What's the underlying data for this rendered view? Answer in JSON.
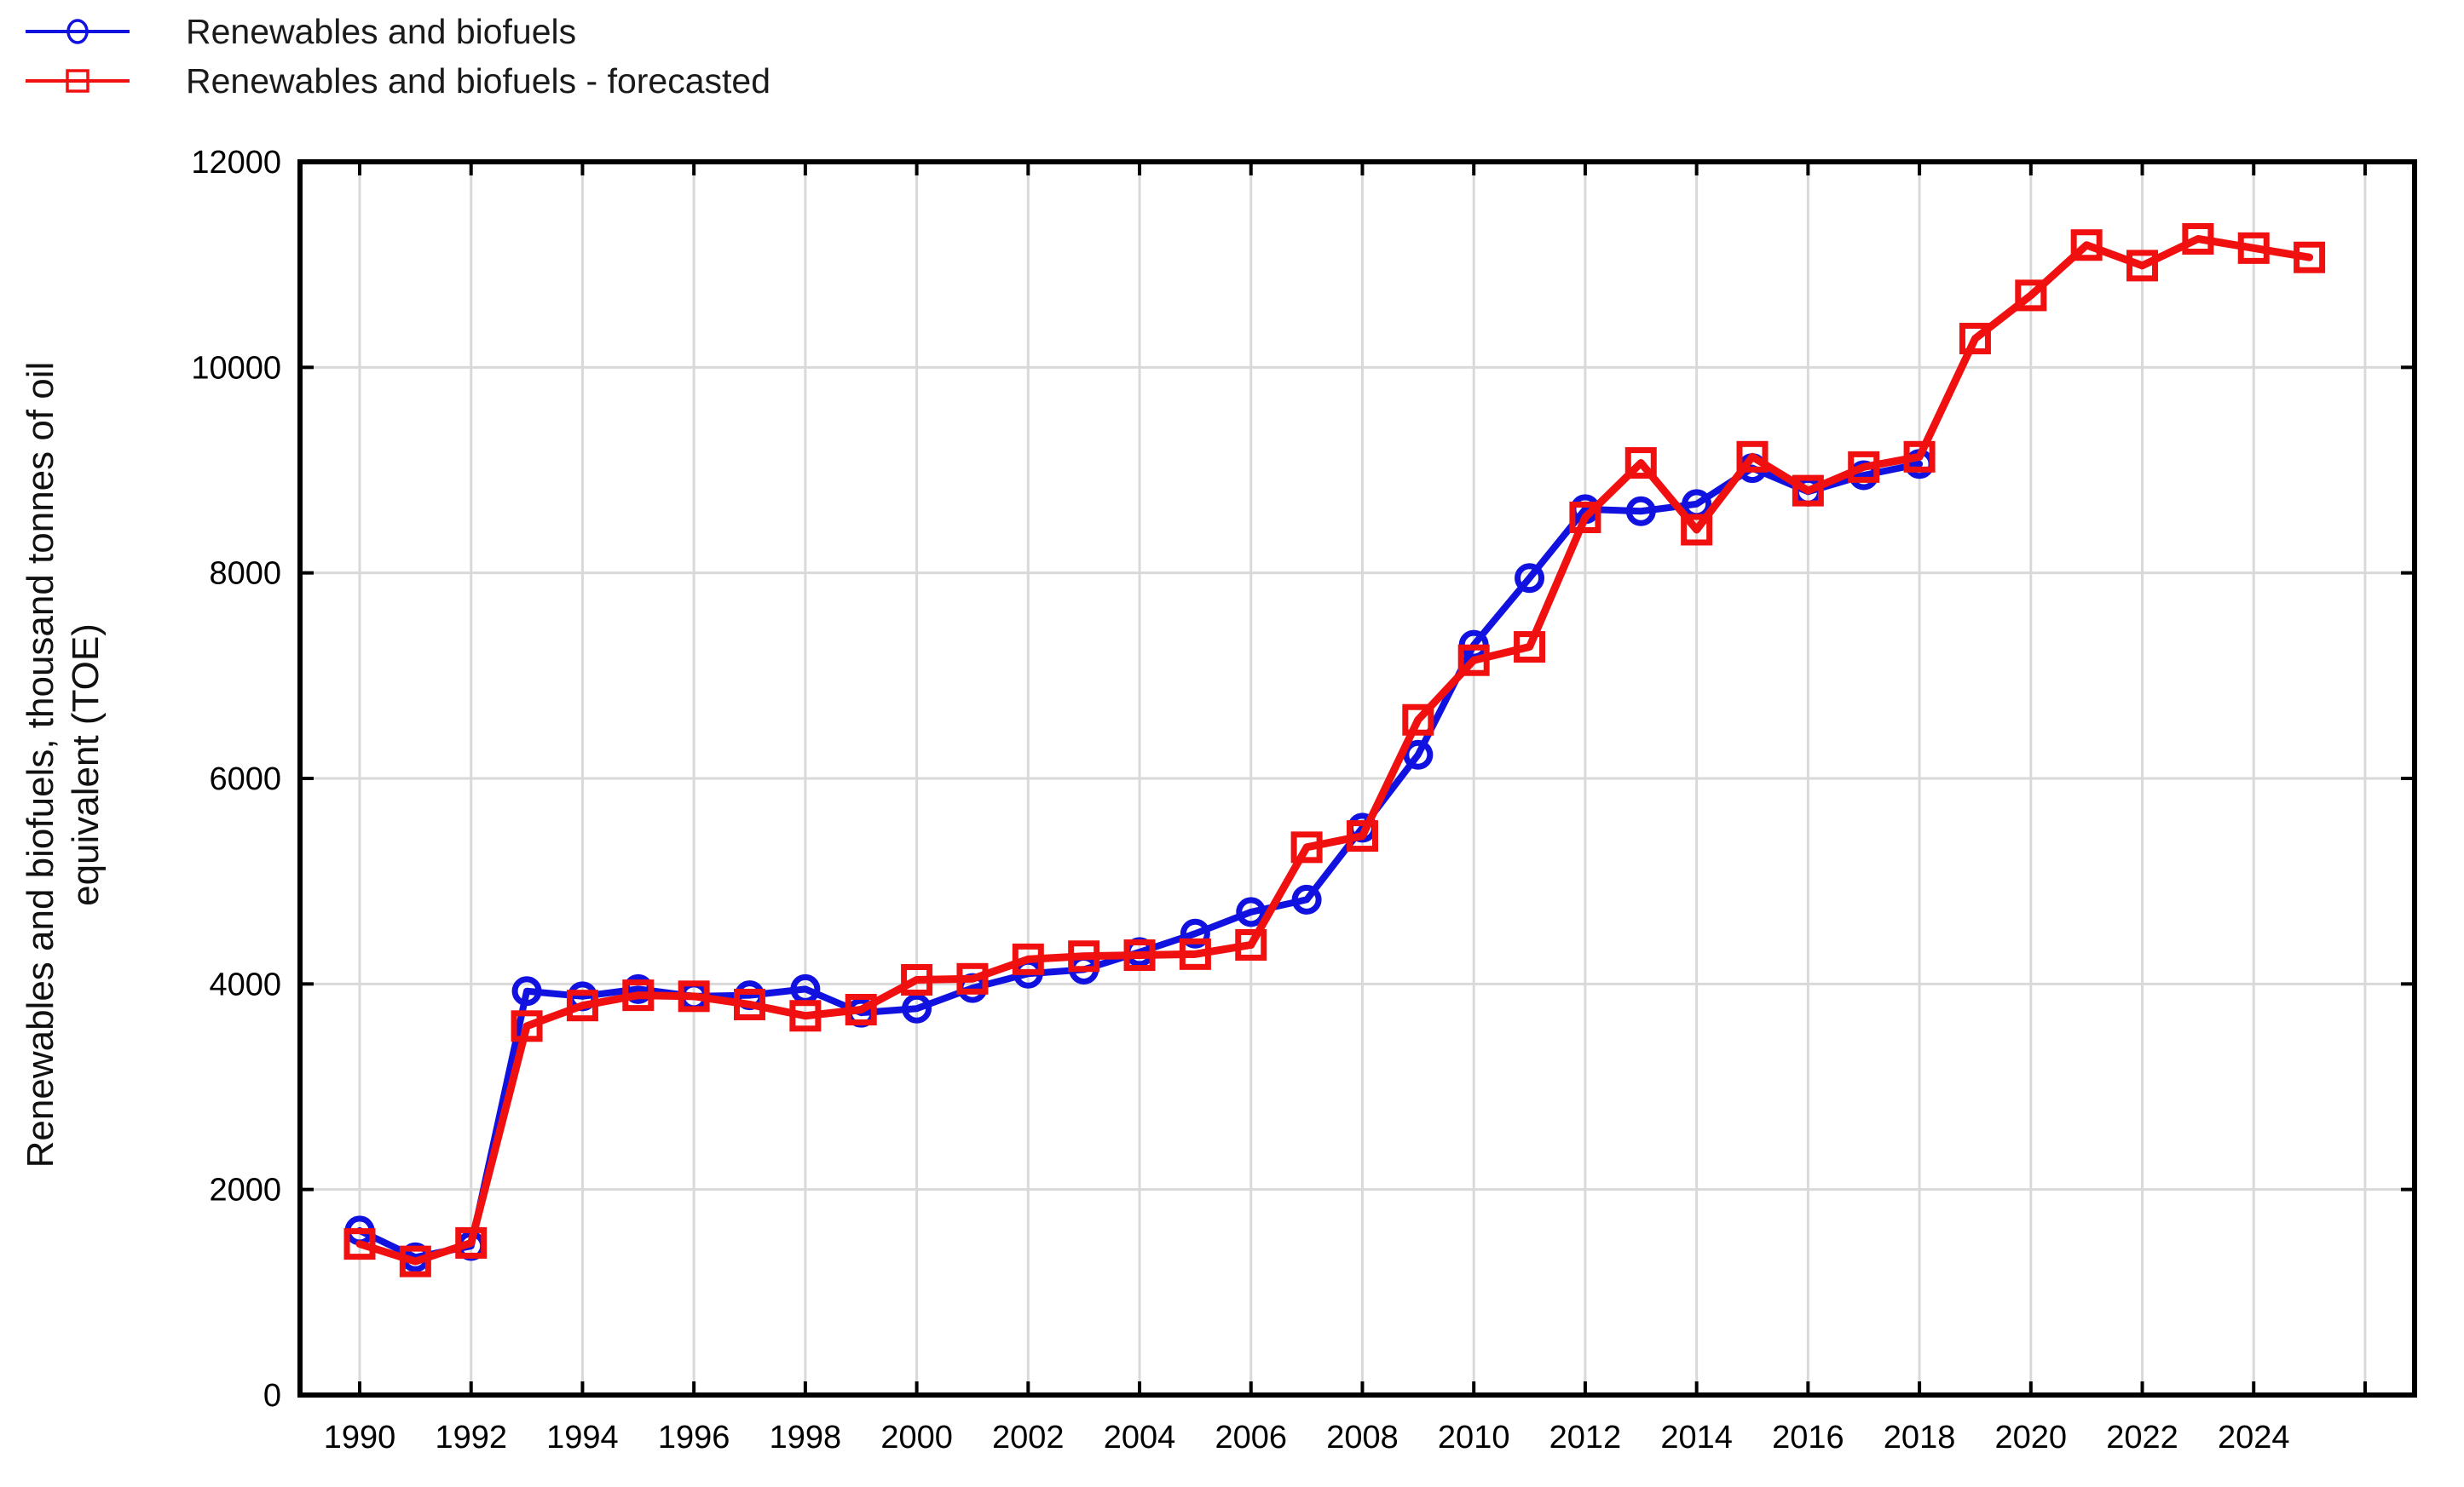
{
  "page": {
    "background": "#ffffff"
  },
  "legend": {
    "items": [
      {
        "label": "Renewables and biofuels",
        "color": "#1212e0",
        "marker": "circle"
      },
      {
        "label": "Renewables and biofuels - forecasted",
        "color": "#f01010",
        "marker": "square"
      }
    ]
  },
  "ylabel": {
    "line1": "Renewables and biofuels, thousand tonnes of oil",
    "line2": "equivalent (TOE)"
  },
  "chart_data": {
    "type": "line",
    "title": "",
    "xlabel": "",
    "ylabel": "Renewables and biofuels, thousand tonnes of oil equivalent (TOE)",
    "ylim": [
      0,
      12000
    ],
    "yticks": [
      0,
      2000,
      4000,
      6000,
      8000,
      10000,
      12000
    ],
    "xticks_labeled": [
      1990,
      1992,
      1994,
      1996,
      1998,
      2000,
      2002,
      2004,
      2006,
      2008,
      2010,
      2012,
      2014,
      2016,
      2018,
      2020,
      2022,
      2024
    ],
    "xticks_all": [
      1990,
      1992,
      1994,
      1996,
      1998,
      2000,
      2002,
      2004,
      2006,
      2008,
      2010,
      2012,
      2014,
      2016,
      2018,
      2020,
      2022,
      2024,
      2026
    ],
    "grid": true,
    "legend_position": "top-left",
    "colors": {
      "grid": "#d9d9d9",
      "frame": "#000000",
      "tick_text": "#000000"
    },
    "x": [
      1990,
      1991,
      1992,
      1993,
      1994,
      1995,
      1996,
      1997,
      1998,
      1999,
      2000,
      2001,
      2002,
      2003,
      2004,
      2005,
      2006,
      2007,
      2008,
      2009,
      2010,
      2011,
      2012,
      2013,
      2014,
      2015,
      2016,
      2017,
      2018,
      2019,
      2020,
      2021,
      2022,
      2023,
      2024,
      2025
    ],
    "series": [
      {
        "name": "Renewables and biofuels",
        "color": "#1212e0",
        "marker": "circle",
        "line_width": 8,
        "values": [
          1600,
          1340,
          1450,
          3930,
          3880,
          3950,
          3880,
          3890,
          3950,
          3720,
          3760,
          3960,
          4100,
          4140,
          4310,
          4490,
          4700,
          4820,
          5520,
          6230,
          7300,
          7950,
          8620,
          8600,
          8670,
          9020,
          8790,
          8950,
          9060,
          null,
          null,
          null,
          null,
          null,
          null,
          null
        ]
      },
      {
        "name": "Renewables and biofuels - forecasted",
        "color": "#f01010",
        "marker": "square",
        "line_width": 9,
        "values": [
          1470,
          1300,
          1480,
          3590,
          3790,
          3890,
          3880,
          3800,
          3690,
          3750,
          4040,
          4050,
          4240,
          4270,
          4280,
          4290,
          4380,
          5330,
          5440,
          6570,
          7150,
          7280,
          8540,
          9070,
          8420,
          9130,
          8800,
          9030,
          9130,
          10280,
          10700,
          11190,
          10990,
          11250,
          11160,
          11070
        ]
      }
    ]
  }
}
